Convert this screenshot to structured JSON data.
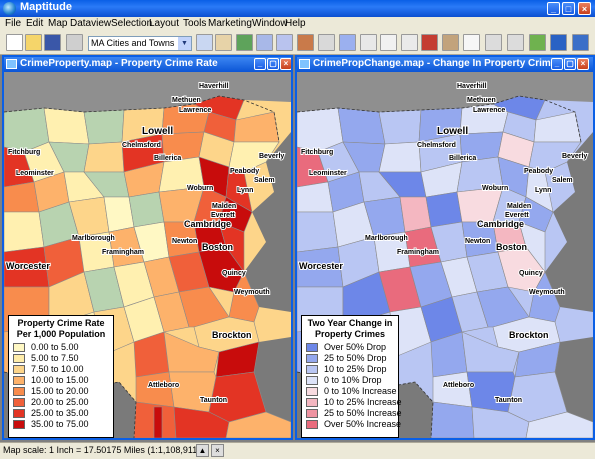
{
  "app": {
    "title": "Maptitude"
  },
  "menu": [
    "File",
    "Edit",
    "Map",
    "Dataview",
    "Selection",
    "Layout",
    "Tools",
    "Marketing",
    "Window",
    "Help"
  ],
  "toolbar": {
    "layer_value": "MA Cities and Towns"
  },
  "left_map": {
    "title": "CrimeProperty.map - Property Crime Rate",
    "legend_title_1": "Property Crime Rate",
    "legend_title_2": "Per 1,000 Population",
    "legend": [
      {
        "label": "0.00 to 5.00",
        "color": "#fff8c4"
      },
      {
        "label": "5.00 to 7.50",
        "color": "#ffedaa"
      },
      {
        "label": "7.50 to 10.00",
        "color": "#fdd58a"
      },
      {
        "label": "10.00 to 15.00",
        "color": "#fdb26b"
      },
      {
        "label": "15.00 to 20.00",
        "color": "#f88c4d"
      },
      {
        "label": "20.00 to 25.00",
        "color": "#f0603a"
      },
      {
        "label": "25.00 to 35.00",
        "color": "#e33424"
      },
      {
        "label": "35.00 to 75.00",
        "color": "#c80c0c"
      }
    ],
    "cities": {
      "haverhill": "Haverhill",
      "methuen": "Methuen",
      "lawrence": "Lawrence",
      "lowell": "Lowell",
      "chelmsford": "Chelmsford",
      "billerica": "Billerica",
      "fitchburg": "Fitchburg",
      "leominster": "Leominster",
      "peabody": "Peabody",
      "salem": "Salem",
      "beverly": "Beverly",
      "lynn": "Lynn",
      "woburn": "Woburn",
      "malden": "Malden",
      "everett": "Everett",
      "cambridge": "Cambridge",
      "newton": "Newton",
      "boston": "Boston",
      "marlborough": "Marlborough",
      "framingham": "Framingham",
      "worcester": "Worcester",
      "quincy": "Quincy",
      "weymouth": "Weymouth",
      "brockton": "Brockton",
      "attleboro": "Attleboro",
      "taunton": "Taunton"
    }
  },
  "right_map": {
    "title": "CrimePropChange.map - Change In Property Crimes",
    "legend_title_1": "Two Year Change in",
    "legend_title_2": "Property Crimes",
    "legend": [
      {
        "label": "Over 50% Drop",
        "color": "#6d87e8"
      },
      {
        "label": "25 to 50% Drop",
        "color": "#94a8ee"
      },
      {
        "label": "10 to 25% Drop",
        "color": "#b9c6f3"
      },
      {
        "label": "0 to 10% Drop",
        "color": "#dde3f8"
      },
      {
        "label": "0 to 10% Increase",
        "color": "#f8dbe0"
      },
      {
        "label": "10 to 25% Increase",
        "color": "#f4b7c1"
      },
      {
        "label": "25 to 50% Increase",
        "color": "#ef93a1"
      },
      {
        "label": "Over 50% Increase",
        "color": "#e96b7d"
      }
    ]
  },
  "status": {
    "text": "Map scale: 1 Inch = 17.50175 Miles (1:1,108,911)"
  }
}
